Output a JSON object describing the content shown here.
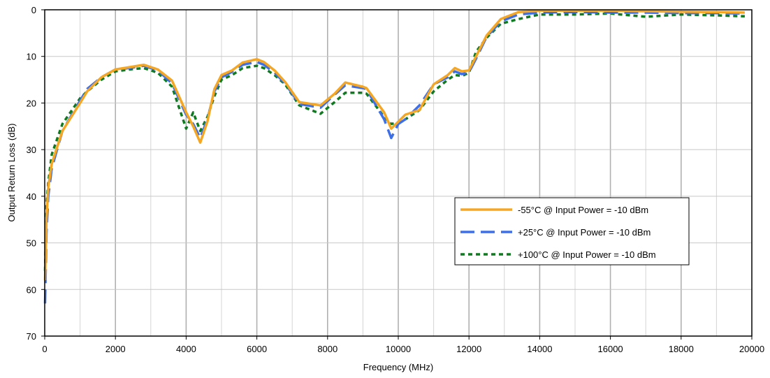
{
  "chart_data": {
    "type": "line",
    "title": "",
    "xlabel": "Frequency (MHz)",
    "ylabel": "Output Return Loss (dB)",
    "xlim": [
      0,
      20000
    ],
    "ylim": [
      0,
      70
    ],
    "y_reversed": true,
    "x_ticks": [
      0,
      2000,
      4000,
      6000,
      8000,
      10000,
      12000,
      14000,
      16000,
      18000,
      20000
    ],
    "y_ticks": [
      0,
      10,
      20,
      30,
      40,
      50,
      60,
      70
    ],
    "x_minor_step": 1000,
    "grid": true,
    "legend_position": "right",
    "series": [
      {
        "name": "-55°C @ Input Power = -10 dBm",
        "color": "#f5a623",
        "dash": "solid",
        "points": [
          [
            10,
            58
          ],
          [
            50,
            45
          ],
          [
            100,
            38
          ],
          [
            200,
            33
          ],
          [
            500,
            26
          ],
          [
            1000,
            20
          ],
          [
            1200,
            17.5
          ],
          [
            1600,
            14.5
          ],
          [
            2000,
            12.8
          ],
          [
            2400,
            12.3
          ],
          [
            2800,
            11.8
          ],
          [
            3200,
            12.8
          ],
          [
            3600,
            15.2
          ],
          [
            4000,
            22
          ],
          [
            4200,
            25
          ],
          [
            4400,
            28.5
          ],
          [
            4600,
            24
          ],
          [
            4800,
            17
          ],
          [
            5000,
            14
          ],
          [
            5300,
            13
          ],
          [
            5600,
            11.3
          ],
          [
            6000,
            10.6
          ],
          [
            6200,
            11.2
          ],
          [
            6500,
            13
          ],
          [
            6800,
            15.5
          ],
          [
            7200,
            19.8
          ],
          [
            7800,
            20.5
          ],
          [
            8200,
            18
          ],
          [
            8500,
            15.6
          ],
          [
            9000,
            16.5
          ],
          [
            9100,
            16.8
          ],
          [
            9600,
            22
          ],
          [
            9800,
            25.5
          ],
          [
            10000,
            24
          ],
          [
            10200,
            22.5
          ],
          [
            10600,
            21.5
          ],
          [
            11000,
            16
          ],
          [
            11400,
            14
          ],
          [
            11600,
            12.5
          ],
          [
            11800,
            13.2
          ],
          [
            12000,
            13
          ],
          [
            12200,
            10
          ],
          [
            12500,
            5.5
          ],
          [
            12900,
            2
          ],
          [
            13400,
            0.5
          ],
          [
            14000,
            0.2
          ],
          [
            15000,
            0.2
          ],
          [
            16000,
            0.2
          ],
          [
            17000,
            0.3
          ],
          [
            18000,
            0.4
          ],
          [
            19000,
            0.5
          ],
          [
            19800,
            0.6
          ]
        ]
      },
      {
        "name": "+25°C @ Input Power = -10 dBm",
        "color": "#3d6fe8",
        "dash": "long-dash",
        "points": [
          [
            10,
            63
          ],
          [
            50,
            48
          ],
          [
            100,
            40
          ],
          [
            200,
            34
          ],
          [
            500,
            26
          ],
          [
            1000,
            19.5
          ],
          [
            1200,
            17
          ],
          [
            1600,
            14.5
          ],
          [
            2000,
            12.8
          ],
          [
            2400,
            12.5
          ],
          [
            2800,
            12
          ],
          [
            3200,
            13
          ],
          [
            3600,
            15.8
          ],
          [
            4000,
            22.5
          ],
          [
            4200,
            24.5
          ],
          [
            4400,
            27.5
          ],
          [
            4600,
            23.5
          ],
          [
            4800,
            17.5
          ],
          [
            5000,
            14.5
          ],
          [
            5300,
            13.3
          ],
          [
            5600,
            11.8
          ],
          [
            6000,
            11.2
          ],
          [
            6200,
            11.8
          ],
          [
            6500,
            13.5
          ],
          [
            6800,
            15.8
          ],
          [
            7200,
            20.2
          ],
          [
            7800,
            21
          ],
          [
            8200,
            18.2
          ],
          [
            8500,
            16.2
          ],
          [
            9000,
            16.8
          ],
          [
            9100,
            17
          ],
          [
            9600,
            23.5
          ],
          [
            9800,
            27.5
          ],
          [
            10000,
            24.5
          ],
          [
            10200,
            23.5
          ],
          [
            10600,
            20.5
          ],
          [
            11000,
            16
          ],
          [
            11400,
            14.5
          ],
          [
            11600,
            13.2
          ],
          [
            11800,
            13.8
          ],
          [
            12000,
            13.4
          ],
          [
            12200,
            10.5
          ],
          [
            12500,
            5.8
          ],
          [
            12900,
            2.5
          ],
          [
            13400,
            1
          ],
          [
            14000,
            0.6
          ],
          [
            15000,
            0.5
          ],
          [
            16000,
            0.6
          ],
          [
            17000,
            0.6
          ],
          [
            18000,
            0.7
          ],
          [
            19000,
            0.7
          ],
          [
            19800,
            0.8
          ]
        ]
      },
      {
        "name": "+100°C @ Input Power = -10 dBm",
        "color": "#0f7a1f",
        "dash": "dotted",
        "points": [
          [
            10,
            56
          ],
          [
            50,
            42
          ],
          [
            100,
            37
          ],
          [
            200,
            31
          ],
          [
            500,
            24.5
          ],
          [
            1000,
            19
          ],
          [
            1200,
            17.5
          ],
          [
            1600,
            15
          ],
          [
            2000,
            13.2
          ],
          [
            2400,
            12.8
          ],
          [
            2800,
            12.5
          ],
          [
            3200,
            13.5
          ],
          [
            3600,
            16.5
          ],
          [
            4000,
            25.5
          ],
          [
            4200,
            22
          ],
          [
            4400,
            26
          ],
          [
            4600,
            23
          ],
          [
            4800,
            18.5
          ],
          [
            5000,
            15
          ],
          [
            5300,
            14
          ],
          [
            5600,
            12.5
          ],
          [
            6000,
            12
          ],
          [
            6200,
            12.5
          ],
          [
            6500,
            14
          ],
          [
            6800,
            16
          ],
          [
            7200,
            20.5
          ],
          [
            7800,
            22.3
          ],
          [
            8200,
            19.8
          ],
          [
            8500,
            17.8
          ],
          [
            9000,
            17.8
          ],
          [
            9100,
            18
          ],
          [
            9600,
            23
          ],
          [
            9800,
            24.5
          ],
          [
            10000,
            24.2
          ],
          [
            10200,
            23.5
          ],
          [
            10600,
            21.5
          ],
          [
            11000,
            17.5
          ],
          [
            11400,
            15
          ],
          [
            11600,
            14
          ],
          [
            11800,
            14.2
          ],
          [
            12000,
            13.5
          ],
          [
            12200,
            9
          ],
          [
            12500,
            6
          ],
          [
            12900,
            3
          ],
          [
            13400,
            2
          ],
          [
            14000,
            1
          ],
          [
            15000,
            1
          ],
          [
            16000,
            0.8
          ],
          [
            17000,
            1.5
          ],
          [
            18000,
            1
          ],
          [
            19000,
            1.2
          ],
          [
            19800,
            1.4
          ]
        ]
      }
    ]
  }
}
